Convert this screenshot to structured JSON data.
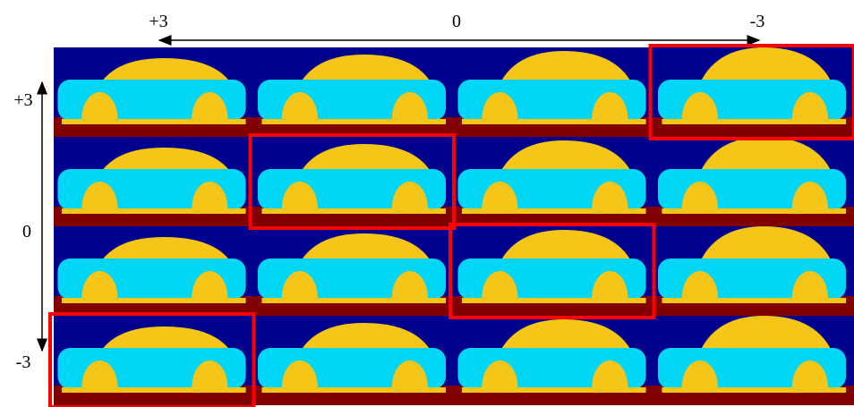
{
  "axes": {
    "horizontal_labels": [
      "+3",
      "0",
      "-3"
    ],
    "vertical_labels": [
      "+3",
      "0",
      "-3"
    ]
  },
  "grid": {
    "rows": 4,
    "cols": 4,
    "highlighted_cells": [
      [
        0,
        3
      ],
      [
        1,
        1
      ],
      [
        2,
        2
      ],
      [
        3,
        0
      ]
    ]
  },
  "colors": {
    "background": "#00008f",
    "ground": "#800000",
    "body": "#00d6f5",
    "window_band": "#f5c518",
    "wheel": "#f5c518",
    "highlight": "#ff0000"
  }
}
